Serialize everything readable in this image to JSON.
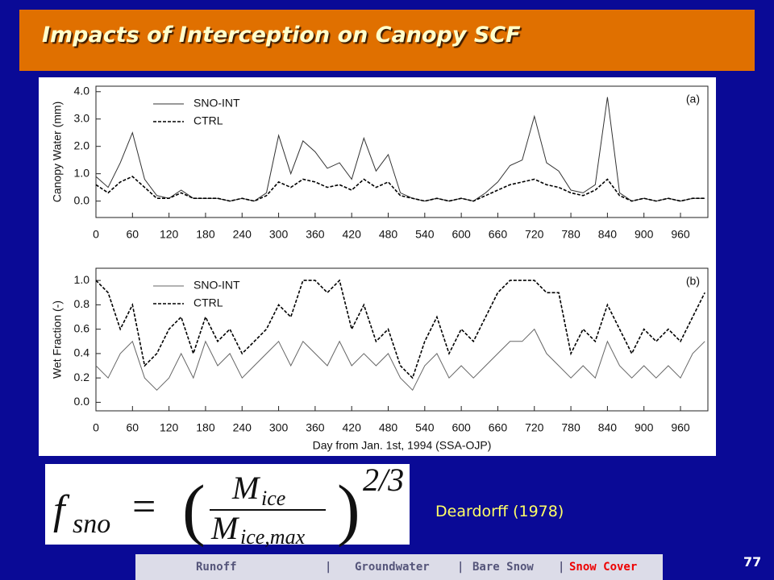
{
  "header": {
    "title": "Impacts of Interception on Canopy SCF"
  },
  "chart_data": [
    {
      "type": "line",
      "panel_label": "(a)",
      "y_label": "Canopy Water (mm)",
      "x": [
        0,
        20,
        40,
        60,
        80,
        100,
        120,
        140,
        160,
        180,
        200,
        220,
        240,
        260,
        280,
        300,
        320,
        340,
        360,
        380,
        400,
        420,
        440,
        460,
        480,
        500,
        520,
        540,
        560,
        580,
        600,
        620,
        640,
        660,
        680,
        700,
        720,
        740,
        760,
        780,
        800,
        820,
        840,
        860,
        880,
        900,
        920,
        940,
        960,
        980,
        1000
      ],
      "series": [
        {
          "name": "SNO-INT",
          "color": "#333333",
          "line_style": "solid",
          "values": [
            0.9,
            0.5,
            1.4,
            2.5,
            0.8,
            0.2,
            0.1,
            0.4,
            0.1,
            0.1,
            0.1,
            0.0,
            0.1,
            0.0,
            0.3,
            2.4,
            1.0,
            2.2,
            1.8,
            1.2,
            1.4,
            0.8,
            2.3,
            1.1,
            1.7,
            0.3,
            0.1,
            0.0,
            0.1,
            0.0,
            0.1,
            0.0,
            0.3,
            0.7,
            1.3,
            1.5,
            3.1,
            1.4,
            1.1,
            0.4,
            0.3,
            0.6,
            3.8,
            0.3,
            0.0,
            0.1,
            0.0,
            0.1,
            0.0,
            0.1,
            0.1
          ]
        },
        {
          "name": "CTRL",
          "color": "#000000",
          "line_style": "dashed",
          "values": [
            0.6,
            0.3,
            0.7,
            0.9,
            0.5,
            0.1,
            0.1,
            0.3,
            0.1,
            0.1,
            0.1,
            0.0,
            0.1,
            0.0,
            0.2,
            0.7,
            0.5,
            0.8,
            0.7,
            0.5,
            0.6,
            0.4,
            0.8,
            0.5,
            0.7,
            0.2,
            0.1,
            0.0,
            0.1,
            0.0,
            0.1,
            0.0,
            0.2,
            0.4,
            0.6,
            0.7,
            0.8,
            0.6,
            0.5,
            0.3,
            0.2,
            0.4,
            0.8,
            0.2,
            0.0,
            0.1,
            0.0,
            0.1,
            0.0,
            0.1,
            0.1
          ]
        }
      ],
      "xlim": [
        0,
        1005
      ],
      "xticks": [
        0,
        60,
        120,
        180,
        240,
        300,
        360,
        420,
        480,
        540,
        600,
        660,
        720,
        780,
        840,
        900,
        960
      ],
      "ylim": [
        -0.6,
        4.2
      ],
      "yticks": [
        {
          "value": 0,
          "label": "0.0"
        },
        {
          "value": 1,
          "label": "1.0"
        },
        {
          "value": 2,
          "label": "2.0"
        },
        {
          "value": 3,
          "label": "3.0"
        },
        {
          "value": 4,
          "label": "4.0"
        }
      ]
    },
    {
      "type": "line",
      "panel_label": "(b)",
      "y_label": "Wet Fraction (-)",
      "x_label": "Day from Jan. 1st, 1994 (SSA-OJP)",
      "x": [
        0,
        20,
        40,
        60,
        80,
        100,
        120,
        140,
        160,
        180,
        200,
        220,
        240,
        260,
        280,
        300,
        320,
        340,
        360,
        380,
        400,
        420,
        440,
        460,
        480,
        500,
        520,
        540,
        560,
        580,
        600,
        620,
        640,
        660,
        680,
        700,
        720,
        740,
        760,
        780,
        800,
        820,
        840,
        860,
        880,
        900,
        920,
        940,
        960,
        980,
        1000
      ],
      "series": [
        {
          "name": "SNO-INT",
          "color": "#666666",
          "line_style": "solid",
          "values": [
            0.3,
            0.2,
            0.4,
            0.5,
            0.2,
            0.1,
            0.2,
            0.4,
            0.2,
            0.5,
            0.3,
            0.4,
            0.2,
            0.3,
            0.4,
            0.5,
            0.3,
            0.5,
            0.4,
            0.3,
            0.5,
            0.3,
            0.4,
            0.3,
            0.4,
            0.2,
            0.1,
            0.3,
            0.4,
            0.2,
            0.3,
            0.2,
            0.3,
            0.4,
            0.5,
            0.5,
            0.6,
            0.4,
            0.3,
            0.2,
            0.3,
            0.2,
            0.5,
            0.3,
            0.2,
            0.3,
            0.2,
            0.3,
            0.2,
            0.4,
            0.5
          ]
        },
        {
          "name": "CTRL",
          "color": "#000000",
          "line_style": "dashed",
          "values": [
            1.0,
            0.9,
            0.6,
            0.8,
            0.3,
            0.4,
            0.6,
            0.7,
            0.4,
            0.7,
            0.5,
            0.6,
            0.4,
            0.5,
            0.6,
            0.8,
            0.7,
            1.0,
            1.0,
            0.9,
            1.0,
            0.6,
            0.8,
            0.5,
            0.6,
            0.3,
            0.2,
            0.5,
            0.7,
            0.4,
            0.6,
            0.5,
            0.7,
            0.9,
            1.0,
            1.0,
            1.0,
            0.9,
            0.9,
            0.4,
            0.6,
            0.5,
            0.8,
            0.6,
            0.4,
            0.6,
            0.5,
            0.6,
            0.5,
            0.7,
            0.9
          ]
        }
      ],
      "xlim": [
        0,
        1005
      ],
      "xticks": [
        0,
        60,
        120,
        180,
        240,
        300,
        360,
        420,
        480,
        540,
        600,
        660,
        720,
        780,
        840,
        900,
        960
      ],
      "ylim": [
        -0.07,
        1.1
      ],
      "yticks": [
        {
          "value": 0,
          "label": "0.0"
        },
        {
          "value": 0.2,
          "label": "0.2"
        },
        {
          "value": 0.4,
          "label": "0.4"
        },
        {
          "value": 0.6,
          "label": "0.6"
        },
        {
          "value": 0.8,
          "label": "0.8"
        },
        {
          "value": 1,
          "label": "1.0"
        }
      ]
    }
  ],
  "equation": {
    "lhs": "f",
    "lhs_sub": "sno",
    "numerator": "M",
    "numerator_sub": "ice",
    "denominator": "M",
    "denominator_sub": "ice,max",
    "exponent": "2/3"
  },
  "citation": "Deardorff (1978)",
  "footer": {
    "items": [
      "Runoff",
      "Groundwater",
      "Bare Snow",
      "Snow Cover"
    ]
  },
  "page_number": 77
}
